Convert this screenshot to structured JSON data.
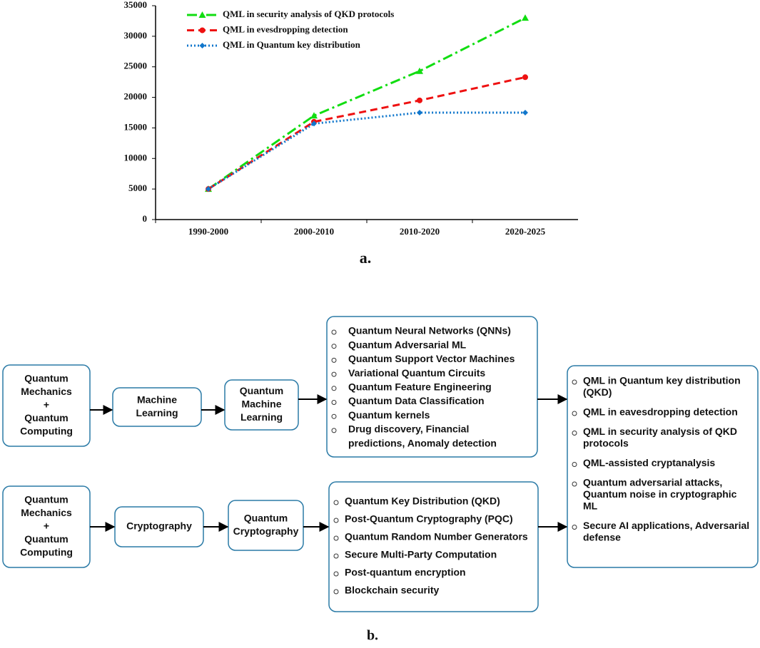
{
  "chart_data": {
    "type": "line",
    "categories": [
      "1990-2000",
      "2000-2010",
      "2010-2020",
      "2020-2025"
    ],
    "series": [
      {
        "name": "QML in security analysis of QKD protocols",
        "color": "#11dd11",
        "style": "dashdot",
        "marker": "triangle",
        "values": [
          5000,
          17000,
          24300,
          33000
        ]
      },
      {
        "name": "QML in evesdropping detection",
        "color": "#ee1111",
        "style": "dashed",
        "marker": "circle",
        "values": [
          5000,
          16000,
          19500,
          23300
        ]
      },
      {
        "name": "QML in Quantum key distribution",
        "color": "#1177cc",
        "style": "dotted",
        "marker": "diamond",
        "values": [
          5000,
          15700,
          17500,
          17500
        ]
      }
    ],
    "ylim": [
      0,
      35000
    ],
    "yticks": [
      0,
      5000,
      10000,
      15000,
      20000,
      25000,
      30000,
      35000
    ],
    "legend": "upper left",
    "caption": "a."
  },
  "diagram": {
    "caption": "b.",
    "nodes": [
      {
        "lines": [
          "Quantum",
          "Mechanics",
          "+",
          "Quantum",
          "Computing"
        ]
      },
      {
        "lines": [
          "Machine",
          "Learning"
        ]
      },
      {
        "lines": [
          "Quantum",
          "Machine",
          "Learning"
        ]
      },
      {
        "items": [
          [
            "Quantum Neural Networks (QNNs)"
          ],
          [
            "Quantum Adversarial ML"
          ],
          [
            " Quantum Support Vector Machines"
          ],
          [
            " Variational Quantum Circuits"
          ],
          [
            " Quantum Feature Engineering"
          ],
          [
            " Quantum Data Classification"
          ],
          [
            " Quantum kernels"
          ],
          [
            " Drug discovery, Financial",
            "predictions, Anomaly detection"
          ]
        ]
      },
      {
        "lines": [
          "Quantum",
          "Mechanics",
          "+",
          "Quantum",
          "Computing"
        ]
      },
      {
        "lines": [
          "Cryptography"
        ]
      },
      {
        "lines": [
          "Quantum",
          "Cryptography"
        ]
      },
      {
        "items": [
          [
            "Quantum Key Distribution (QKD)"
          ],
          [
            "Post-Quantum Cryptography (PQC)"
          ],
          [
            "Quantum Random Number Generators"
          ],
          [
            " Secure Multi-Party Computation"
          ],
          [
            " Post-quantum encryption"
          ],
          [
            "Blockchain security"
          ]
        ]
      },
      {
        "items": [
          [
            "QML in Quantum key distribution",
            "(QKD)"
          ],
          [
            " QML in eavesdropping detection"
          ],
          [
            " QML in security analysis of QKD",
            "protocols"
          ],
          [
            " QML-assisted cryptanalysis"
          ],
          [
            "Quantum adversarial attacks,",
            "Quantum noise in cryptographic",
            "ML"
          ],
          [
            "Secure AI applications, Adversarial",
            "defense"
          ]
        ]
      }
    ]
  }
}
